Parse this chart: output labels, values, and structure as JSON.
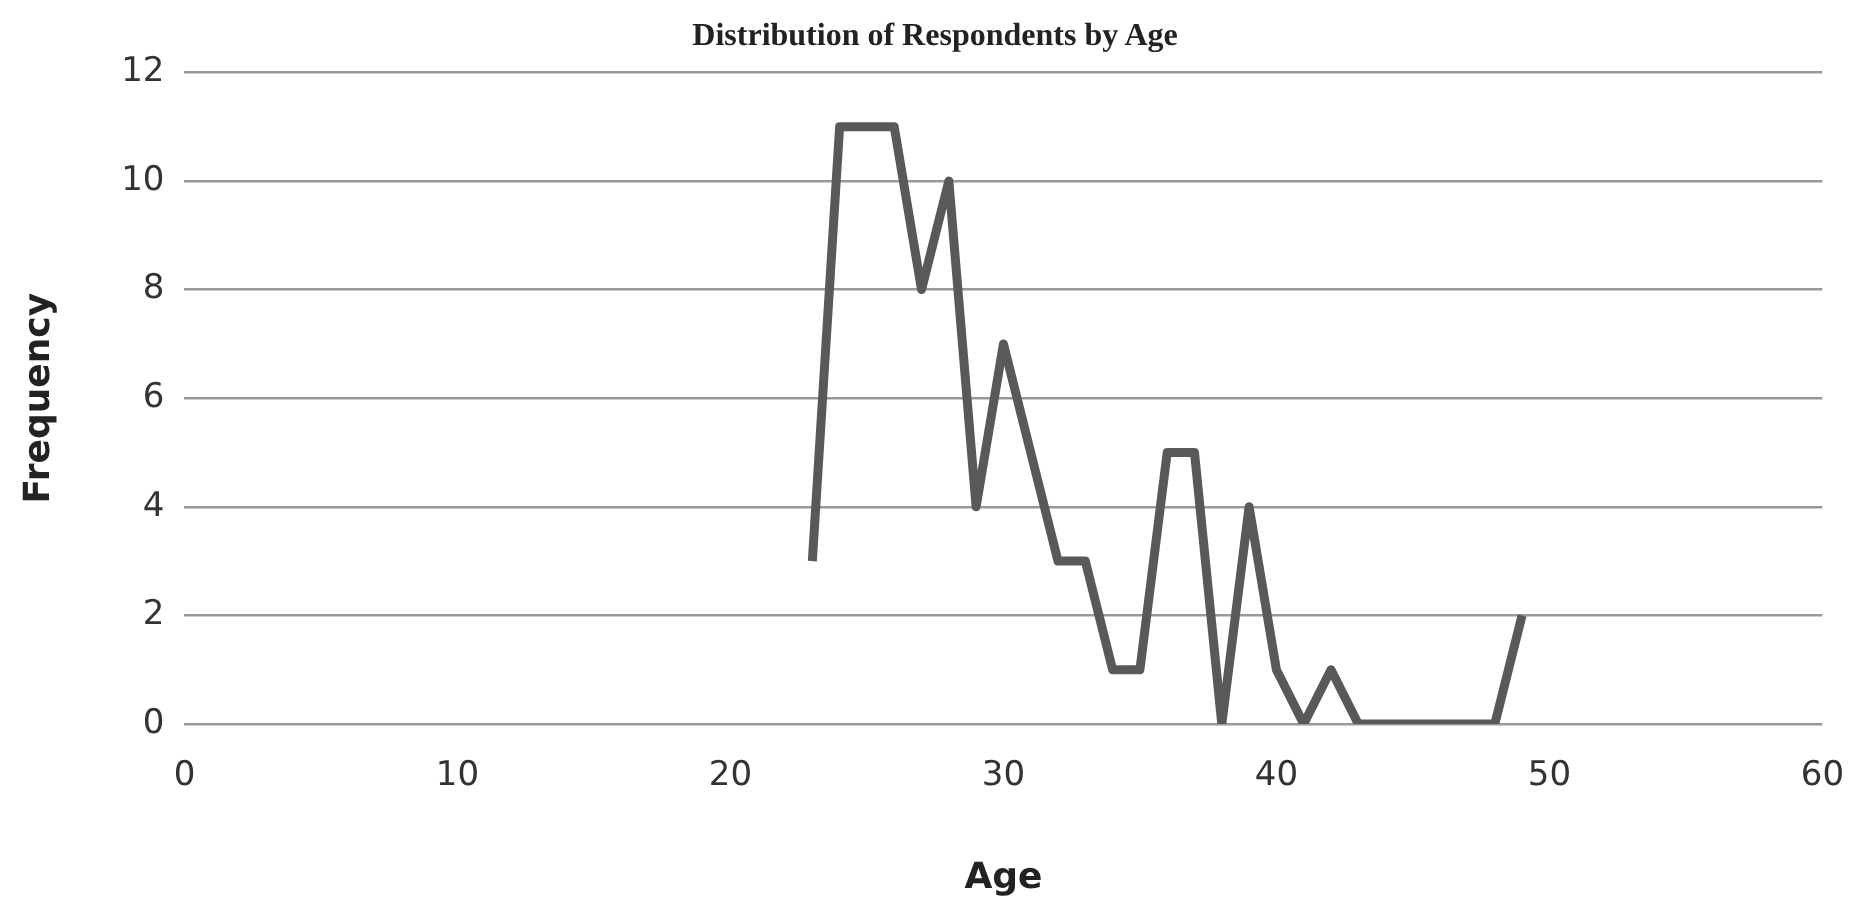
{
  "chart_data": {
    "type": "line",
    "title": "Distribution of Respondents by Age",
    "xlabel": "Age",
    "ylabel": "Frequency",
    "x": [
      23,
      24,
      25,
      26,
      27,
      28,
      29,
      30,
      31,
      32,
      33,
      34,
      35,
      36,
      37,
      38,
      39,
      40,
      41,
      42,
      43,
      44,
      45,
      46,
      47,
      48,
      49
    ],
    "series": [
      {
        "color": "#595959",
        "values": [
          3,
          11,
          11,
          11,
          8,
          10,
          4,
          7,
          5,
          3,
          3,
          1,
          1,
          5,
          5,
          0,
          4,
          1,
          0,
          1,
          0,
          0,
          0,
          0,
          0,
          0,
          2
        ]
      }
    ],
    "xlim": [
      0,
      60
    ],
    "xticks": [
      0,
      10,
      20,
      30,
      40,
      50,
      60
    ],
    "ylim": [
      0,
      12
    ],
    "yticks": [
      0,
      2,
      4,
      6,
      8,
      10,
      12
    ],
    "grid": "y",
    "legend": false,
    "marker": "none",
    "line_style": "solid"
  }
}
